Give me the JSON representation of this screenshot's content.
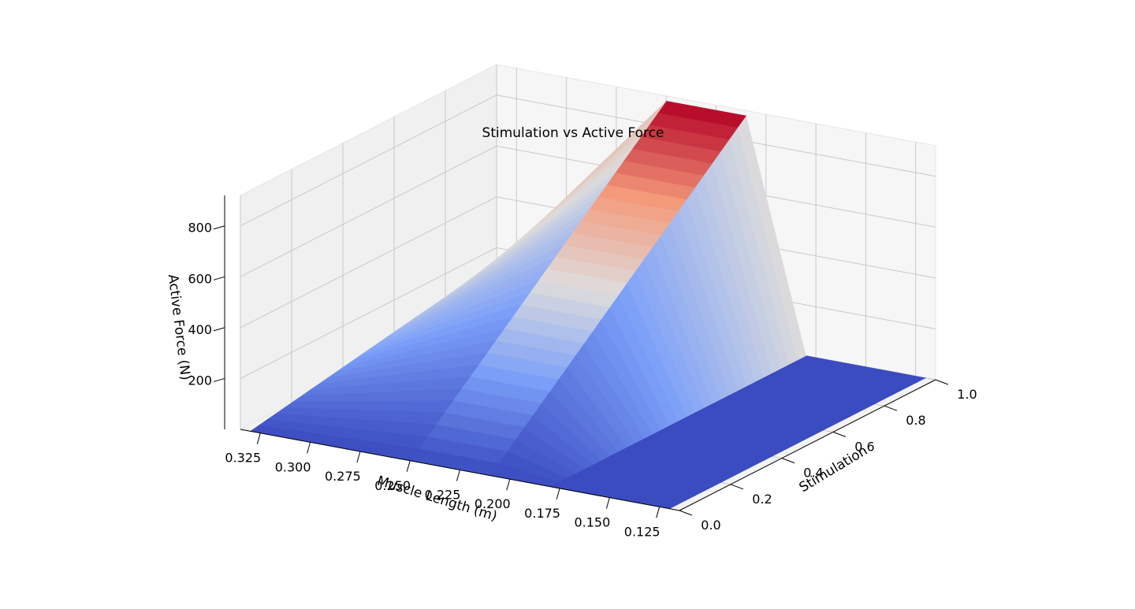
{
  "chart_data": {
    "type": "surface",
    "title": "Stimulation vs Active Force",
    "xlabel": "Muscle Length (m)",
    "ylabel": "Stimulation",
    "zlabel": "Active Force (N)",
    "x_ticks": [
      "0.325",
      "0.300",
      "0.275",
      "0.250",
      "0.225",
      "0.200",
      "0.175",
      "0.150",
      "0.125"
    ],
    "y_ticks": [
      "0.0",
      "0.2",
      "0.4",
      "0.6",
      "0.8",
      "1.0"
    ],
    "z_ticks": [
      "200",
      "400",
      "600",
      "800"
    ],
    "xlim": [
      0.115,
      0.335
    ],
    "ylim": [
      0,
      1
    ],
    "zlim": [
      0,
      920
    ],
    "colormap": "coolwarm",
    "grid": true,
    "surface": {
      "muscle_length": [
        0.33,
        0.25,
        0.21,
        0.18,
        0.12
      ],
      "stimulation": [
        0.0,
        1.0
      ],
      "active_force_at_full_stimulation": [
        180,
        900,
        900,
        0,
        0
      ]
    }
  }
}
